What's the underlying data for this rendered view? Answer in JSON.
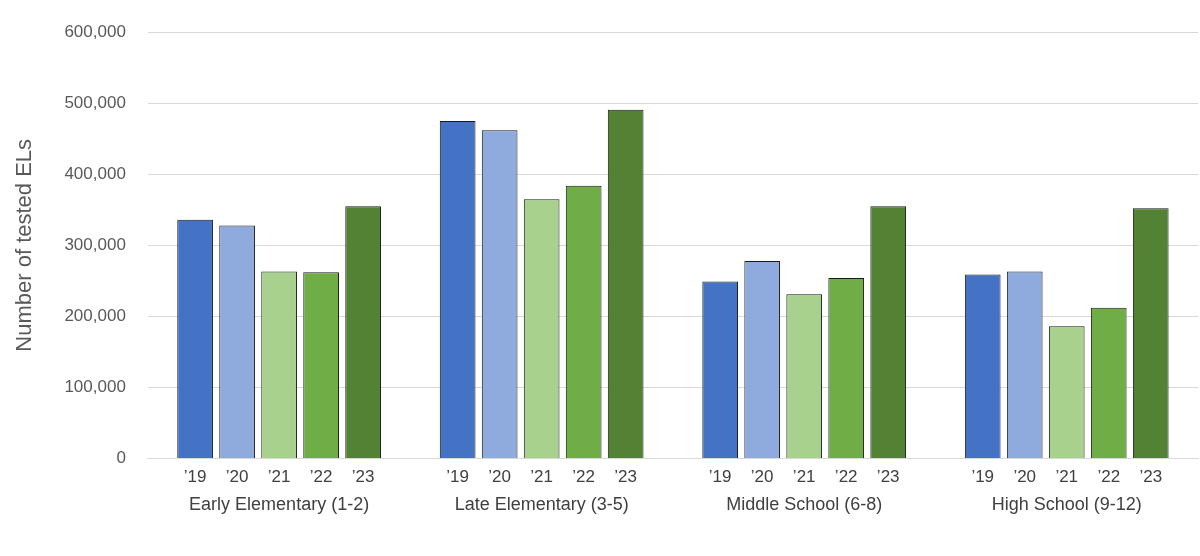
{
  "chart_data": {
    "type": "bar",
    "ylabel": "Number of tested ELs",
    "categories": [
      "Early Elementary (1-2)",
      "Late Elementary (3-5)",
      "Middle School (6-8)",
      "High School (9-12)"
    ],
    "series": [
      {
        "name": "’19",
        "color": "#4472c4",
        "values": [
          336000,
          475000,
          249000,
          259000
        ]
      },
      {
        "name": "’20",
        "color": "#8faadc",
        "values": [
          328000,
          462000,
          278000,
          263000
        ]
      },
      {
        "name": "’21",
        "color": "#a9d18e",
        "values": [
          263000,
          365000,
          231000,
          186000
        ]
      },
      {
        "name": "’22",
        "color": "#70ad47",
        "values": [
          262000,
          384000,
          254000,
          212000
        ]
      },
      {
        "name": "’23",
        "color": "#548235",
        "values": [
          355000,
          491000,
          355000,
          352000
        ]
      }
    ],
    "ylim": [
      0,
      600000
    ],
    "yticks": [
      0,
      {
        "value": 100000,
        "label": "100,000"
      },
      {
        "value": 200000,
        "label": "200,000"
      },
      {
        "value": 300000,
        "label": "300,000"
      },
      {
        "value": 400000,
        "label": "400,000"
      },
      {
        "value": 500000,
        "label": "500,000"
      },
      {
        "value": 600000,
        "label": "600,000"
      }
    ],
    "grid": "y",
    "legend": false
  }
}
